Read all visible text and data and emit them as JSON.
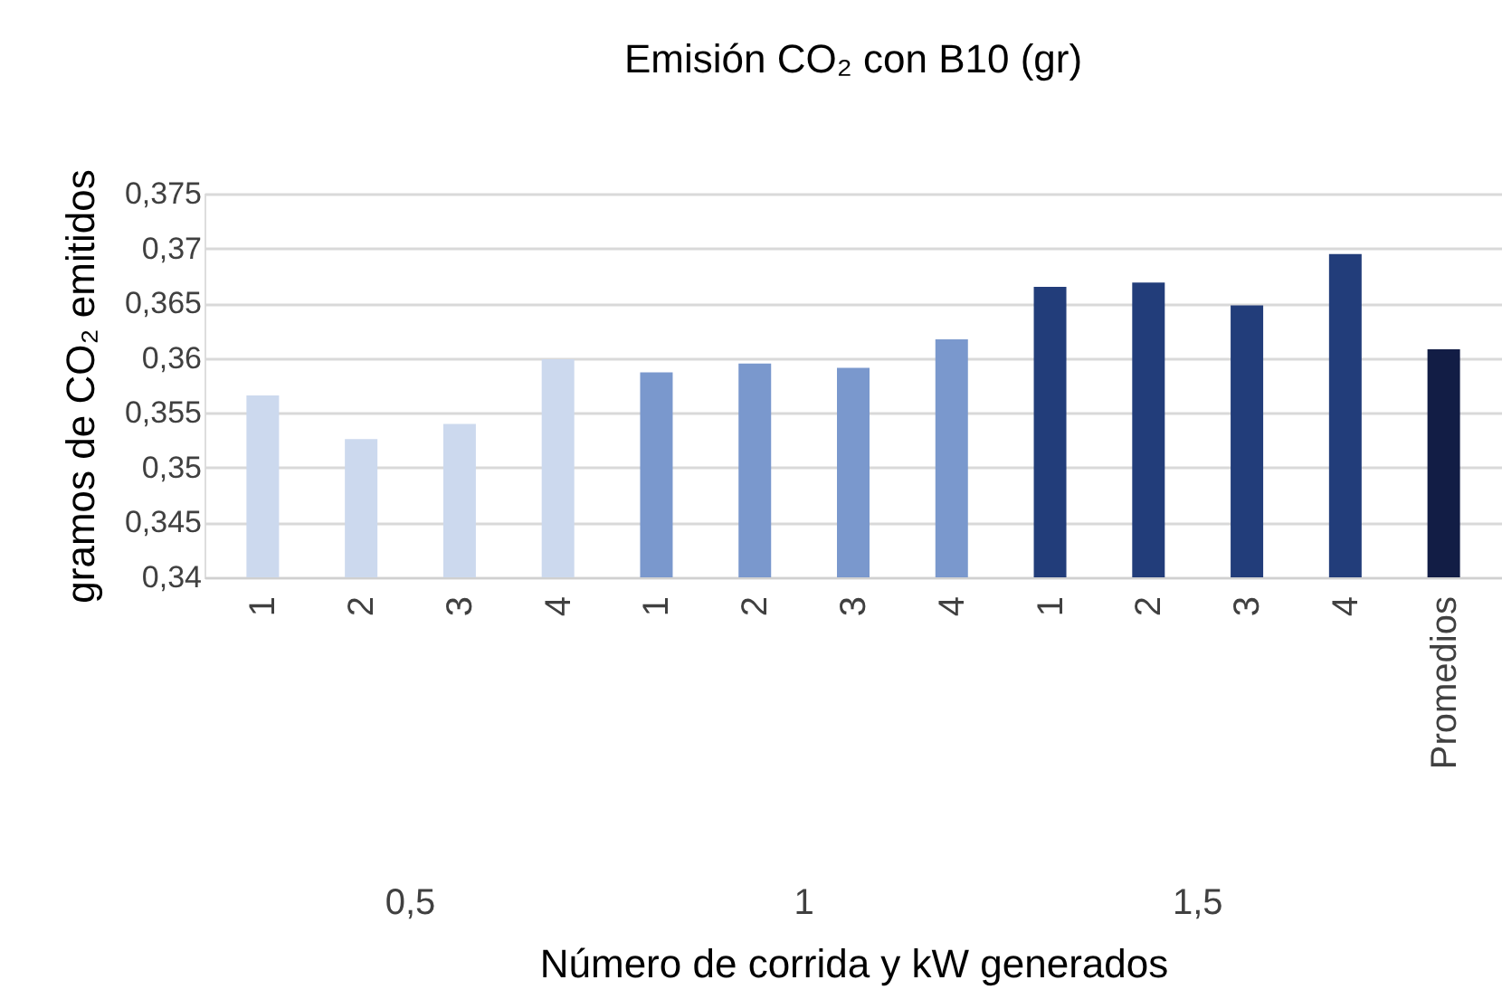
{
  "chart_data": {
    "type": "bar",
    "title": "Emisión CO₂ con B10 (gr)",
    "xlabel": "Número de corrida y kW generados",
    "ylabel": "gramos de CO₂ emitidos",
    "categories": [
      "1",
      "2",
      "3",
      "4",
      "1",
      "2",
      "3",
      "4",
      "1",
      "2",
      "3",
      "4",
      "Promedios"
    ],
    "values": [
      0.3566,
      0.3526,
      0.354,
      0.3599,
      0.3587,
      0.3595,
      0.3591,
      0.3617,
      0.3665,
      0.3669,
      0.3648,
      0.3695,
      0.3608
    ],
    "colors": [
      "#ccd9ee",
      "#ccd9ee",
      "#ccd9ee",
      "#ccd9ee",
      "#7a98cd",
      "#7a98cd",
      "#7a98cd",
      "#7a98cd",
      "#223d7a",
      "#223d7a",
      "#223d7a",
      "#223d7a",
      "#121d45"
    ],
    "ylim": [
      0.34,
      0.375
    ],
    "yticks": [
      {
        "value": 0.34,
        "label": "0,34"
      },
      {
        "value": 0.345,
        "label": "0,345"
      },
      {
        "value": 0.35,
        "label": "0,35"
      },
      {
        "value": 0.355,
        "label": "0,355"
      },
      {
        "value": 0.36,
        "label": "0,36"
      },
      {
        "value": 0.365,
        "label": "0,365"
      },
      {
        "value": 0.37,
        "label": "0,37"
      },
      {
        "value": 0.375,
        "label": "0,375"
      }
    ],
    "grid": "y",
    "legend": false,
    "annotations": [
      "0,5",
      "1",
      "1,5"
    ]
  }
}
